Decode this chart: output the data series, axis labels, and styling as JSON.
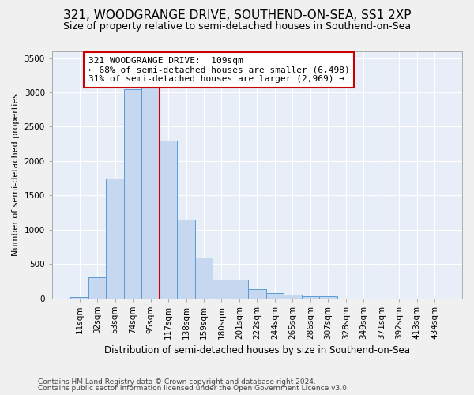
{
  "title": "321, WOODGRANGE DRIVE, SOUTHEND-ON-SEA, SS1 2XP",
  "subtitle": "Size of property relative to semi-detached houses in Southend-on-Sea",
  "xlabel": "Distribution of semi-detached houses by size in Southend-on-Sea",
  "ylabel": "Number of semi-detached properties",
  "footnote1": "Contains HM Land Registry data © Crown copyright and database right 2024.",
  "footnote2": "Contains public sector information licensed under the Open Government Licence v3.0.",
  "annotation_title": "321 WOODGRANGE DRIVE:  109sqm",
  "annotation_line1": "← 68% of semi-detached houses are smaller (6,498)",
  "annotation_line2": "31% of semi-detached houses are larger (2,969) →",
  "bar_categories": [
    "11sqm",
    "32sqm",
    "53sqm",
    "74sqm",
    "95sqm",
    "117sqm",
    "138sqm",
    "159sqm",
    "180sqm",
    "201sqm",
    "222sqm",
    "244sqm",
    "265sqm",
    "286sqm",
    "307sqm",
    "328sqm",
    "349sqm",
    "371sqm",
    "392sqm",
    "413sqm",
    "434sqm"
  ],
  "bar_values": [
    15,
    310,
    1750,
    3050,
    3400,
    2300,
    1150,
    590,
    270,
    270,
    130,
    80,
    55,
    30,
    30,
    0,
    0,
    0,
    0,
    0,
    0
  ],
  "bar_color": "#c5d8f0",
  "bar_edge_color": "#5b9bd5",
  "red_line_x": 4.5,
  "ylim": [
    0,
    3600
  ],
  "yticks": [
    0,
    500,
    1000,
    1500,
    2000,
    2500,
    3000,
    3500
  ],
  "plot_bg": "#e8eef8",
  "grid_color": "#ffffff",
  "annotation_box_color": "#ffffff",
  "annotation_box_edge": "#cc0000",
  "title_fontsize": 11,
  "subtitle_fontsize": 9,
  "xlabel_fontsize": 8.5,
  "ylabel_fontsize": 8,
  "tick_fontsize": 7.5,
  "annotation_fontsize": 8
}
